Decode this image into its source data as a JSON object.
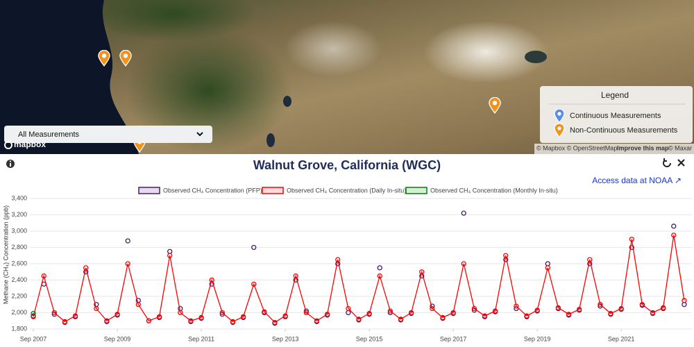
{
  "map": {
    "dropdown_label": "All Measurements",
    "logo": "mapbox",
    "legend": {
      "title": "Legend",
      "items": [
        "Continuous Measurements",
        "Non-Continuous Measurements"
      ]
    },
    "attribution": {
      "credits": "© Mapbox © OpenStreetMap",
      "improve": "Improve this map",
      "imagery": "© Maxar"
    }
  },
  "access_link": "Access data at NOAA ↗",
  "chart_data": {
    "type": "scatter",
    "title": "Walnut Grove, California (WGC)",
    "y_label": "Methane (CH₄) Concentration (ppb)",
    "xlim": [
      "2007-08",
      "2023-05"
    ],
    "xticks": [
      {
        "value": "2007-09",
        "label": "Sep 2007"
      },
      {
        "value": "2009-09",
        "label": "Sep 2009"
      },
      {
        "value": "2011-09",
        "label": "Sep 2011"
      },
      {
        "value": "2013-09",
        "label": "Sep 2013"
      },
      {
        "value": "2015-09",
        "label": "Sep 2015"
      },
      {
        "value": "2017-09",
        "label": "Sep 2017"
      },
      {
        "value": "2019-09",
        "label": "Sep 2019"
      },
      {
        "value": "2021-09",
        "label": "Sep 2021"
      }
    ],
    "ylim": [
      1800,
      3400
    ],
    "yticks": [
      {
        "value": 1800,
        "label": "1,800"
      },
      {
        "value": 2000,
        "label": "2,000"
      },
      {
        "value": 2200,
        "label": "2,200"
      },
      {
        "value": 2400,
        "label": "2,400"
      },
      {
        "value": 2600,
        "label": "2,600"
      },
      {
        "value": 2800,
        "label": "2,800"
      },
      {
        "value": 3000,
        "label": "3,000"
      },
      {
        "value": 3200,
        "label": "3,200"
      },
      {
        "value": 3400,
        "label": "3,400"
      }
    ],
    "grid": true,
    "series": [
      {
        "name": "Observed CH₄ Concentration (PFP)",
        "color": "#4b1a6b",
        "mode": "markers",
        "x": [
          "2007-09",
          "2007-12",
          "2008-03",
          "2008-06",
          "2008-09",
          "2008-12",
          "2009-03",
          "2009-06",
          "2009-09",
          "2009-12",
          "2010-03",
          "2010-06",
          "2010-09",
          "2010-12",
          "2011-03",
          "2011-06",
          "2011-09",
          "2011-12",
          "2012-03",
          "2012-06",
          "2012-09",
          "2012-12",
          "2013-03",
          "2013-06",
          "2013-09",
          "2013-12",
          "2014-03",
          "2014-06",
          "2014-09",
          "2014-12",
          "2015-03",
          "2015-06",
          "2015-09",
          "2015-12",
          "2016-03",
          "2016-06",
          "2016-09",
          "2016-12",
          "2017-03",
          "2017-06",
          "2017-09",
          "2017-12",
          "2018-03",
          "2018-06",
          "2018-09",
          "2018-12",
          "2019-03",
          "2019-06",
          "2019-09",
          "2019-12",
          "2020-03",
          "2020-06",
          "2020-09",
          "2020-12",
          "2021-03",
          "2021-06",
          "2021-09",
          "2021-12",
          "2022-03",
          "2022-06",
          "2022-09",
          "2022-12",
          "2023-03"
        ],
        "values": [
          1960,
          2350,
          1980,
          1880,
          1950,
          2500,
          2100,
          1890,
          1970,
          2880,
          2150,
          1900,
          1940,
          2750,
          2050,
          1890,
          1930,
          2350,
          1980,
          1880,
          1940,
          2800,
          2000,
          1870,
          1950,
          2400,
          2020,
          1890,
          1970,
          2600,
          2000,
          1910,
          1980,
          2550,
          2000,
          1910,
          1990,
          2450,
          2080,
          1930,
          1990,
          3220,
          2030,
          1950,
          2010,
          2650,
          2050,
          1950,
          2020,
          2600,
          2050,
          1970,
          2030,
          2600,
          2080,
          1980,
          2040,
          2800,
          2090,
          1990,
          2050,
          3060,
          2100
        ]
      },
      {
        "name": "Observed CH₄ Concentration (Daily In-situ)",
        "color": "#ff0000",
        "mode": "lines+markers",
        "x": [
          "2007-09",
          "2007-12",
          "2008-03",
          "2008-06",
          "2008-09",
          "2008-12",
          "2009-03",
          "2009-06",
          "2009-09",
          "2009-12",
          "2010-03",
          "2010-06",
          "2010-09",
          "2010-12",
          "2011-03",
          "2011-06",
          "2011-09",
          "2011-12",
          "2012-03",
          "2012-06",
          "2012-09",
          "2012-12",
          "2013-03",
          "2013-06",
          "2013-09",
          "2013-12",
          "2014-03",
          "2014-06",
          "2014-09",
          "2014-12",
          "2015-03",
          "2015-06",
          "2015-09",
          "2015-12",
          "2016-03",
          "2016-06",
          "2016-09",
          "2016-12",
          "2017-03",
          "2017-06",
          "2017-09",
          "2017-12",
          "2018-03",
          "2018-06",
          "2018-09",
          "2018-12",
          "2019-03",
          "2019-06",
          "2019-09",
          "2019-12",
          "2020-03",
          "2020-06",
          "2020-09",
          "2020-12",
          "2021-03",
          "2021-06",
          "2021-09",
          "2021-12",
          "2022-03",
          "2022-06",
          "2022-09",
          "2022-12",
          "2023-03"
        ],
        "values": [
          1950,
          2450,
          2000,
          1890,
          1960,
          2550,
          2050,
          1900,
          1980,
          2600,
          2100,
          1900,
          1950,
          2700,
          2000,
          1900,
          1940,
          2400,
          2000,
          1890,
          1950,
          2350,
          2010,
          1880,
          1960,
          2450,
          2000,
          1900,
          1980,
          2650,
          2050,
          1920,
          1990,
          2450,
          2020,
          1920,
          2000,
          2500,
          2050,
          1940,
          2000,
          2600,
          2050,
          1960,
          2020,
          2700,
          2080,
          1960,
          2030,
          2550,
          2060,
          1980,
          2040,
          2650,
          2100,
          1990,
          2050,
          2900,
          2100,
          2000,
          2060,
          2950,
          2150
        ]
      },
      {
        "name": "Observed CH₄ Concentration (Monthly In-situ)",
        "color": "#008000",
        "mode": "markers",
        "x": [
          "2007-09"
        ],
        "values": [
          1990
        ]
      }
    ]
  }
}
